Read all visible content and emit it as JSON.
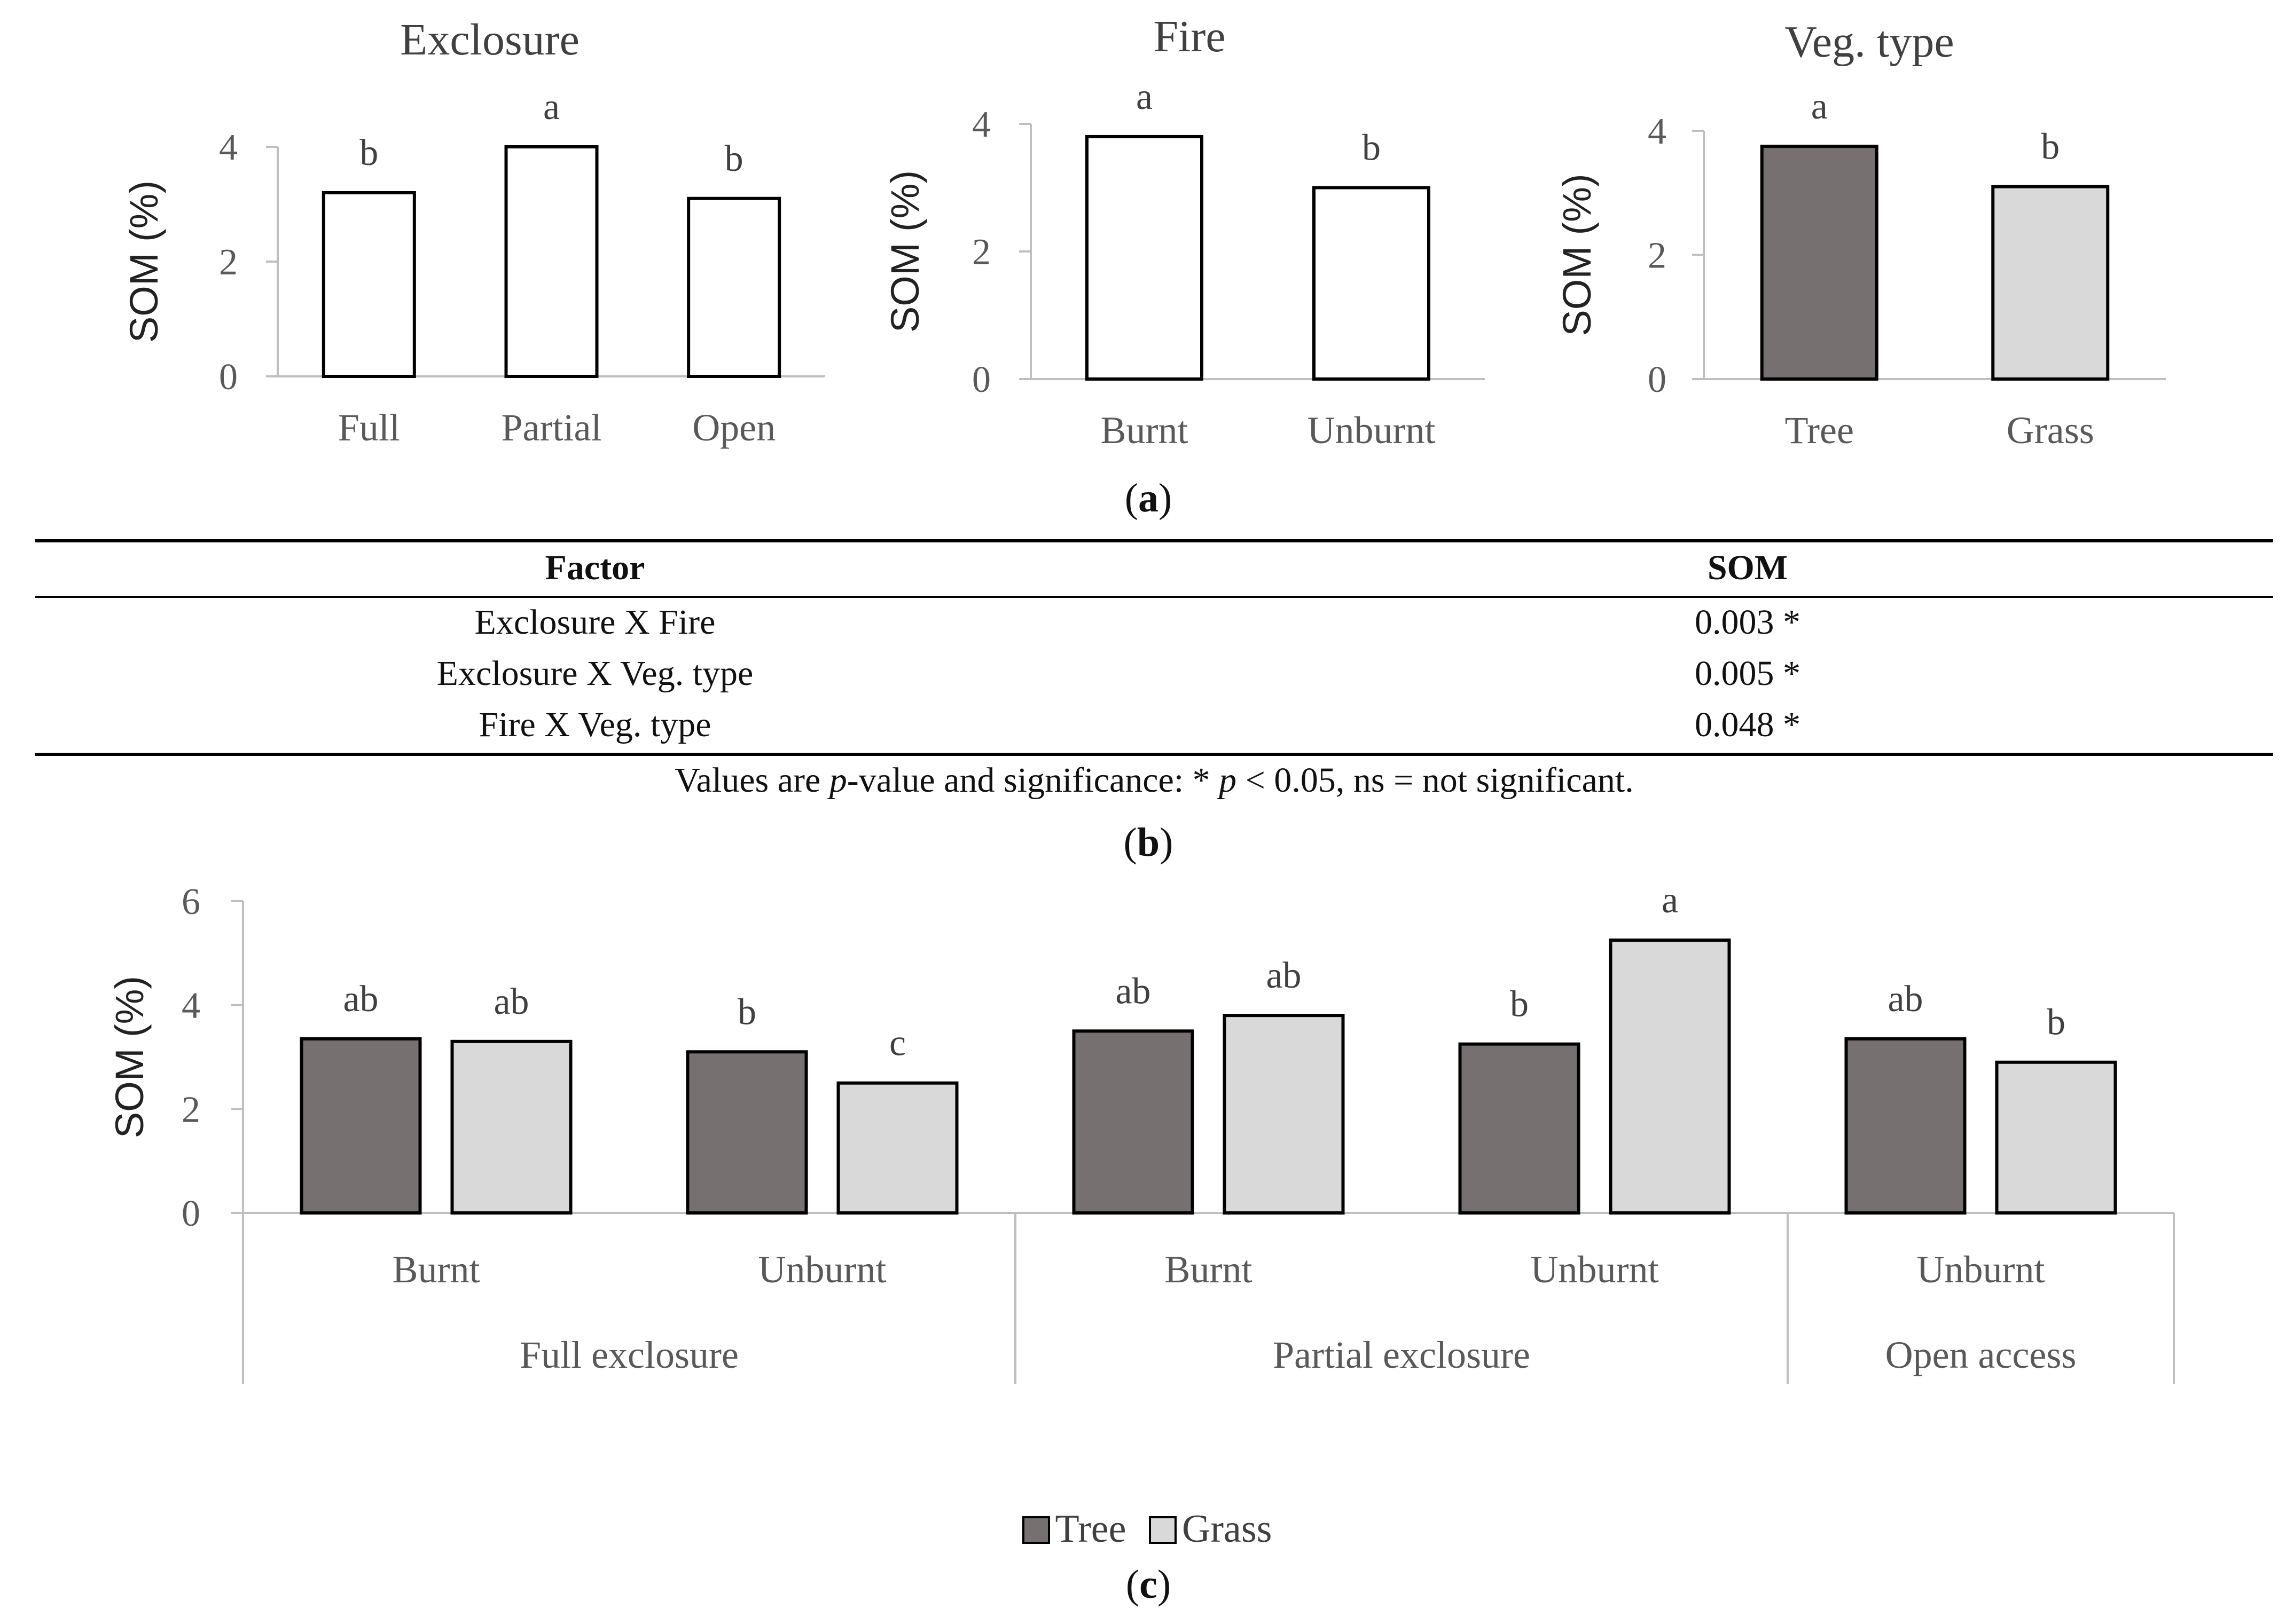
{
  "colors": {
    "tree": "#767070",
    "grass": "#d9d9d9",
    "open": "#ffffff",
    "axis": "#bfbfbf",
    "text": "#595959"
  },
  "panel_a": {
    "label": "a",
    "charts": [
      {
        "title": "Exclosure",
        "ylabel": "SOM (%)",
        "ylim": [
          0,
          4
        ],
        "yticks": [
          "0",
          "2",
          "4"
        ],
        "categories": [
          "Full",
          "Partial",
          "Open"
        ],
        "values": [
          3.2,
          4.0,
          3.1
        ],
        "letters": [
          "b",
          "a",
          "b"
        ]
      },
      {
        "title": "Fire",
        "ylabel": "SOM (%)",
        "ylim": [
          0,
          4
        ],
        "yticks": [
          "0",
          "2",
          "4"
        ],
        "categories": [
          "Burnt",
          "Unburnt"
        ],
        "values": [
          3.8,
          3.0
        ],
        "letters": [
          "a",
          "b"
        ]
      },
      {
        "title": "Veg. type",
        "ylabel": "SOM (%)",
        "ylim": [
          0,
          4
        ],
        "yticks": [
          "0",
          "2",
          "4"
        ],
        "categories": [
          "Tree",
          "Grass"
        ],
        "values": [
          3.75,
          3.1
        ],
        "letters": [
          "a",
          "b"
        ]
      }
    ]
  },
  "panel_b": {
    "label": "b",
    "header": {
      "factor": "Factor",
      "som": "SOM"
    },
    "rows": [
      {
        "factor": "Exclosure X Fire",
        "som": "0.003 *"
      },
      {
        "factor": "Exclosure X Veg. type",
        "som": "0.005 *"
      },
      {
        "factor": "Fire X Veg. type",
        "som": "0.048 *"
      }
    ],
    "note_before": "Values are ",
    "note_p1": "p",
    "note_mid": "-value and significance: * ",
    "note_p2": "p",
    "note_after": " < 0.05, ns = not significant."
  },
  "chart_data": {
    "type": "bar",
    "title": "",
    "ylabel": "SOM (%)",
    "ylim": [
      0,
      6
    ],
    "yticks": [
      "0",
      "2",
      "4",
      "6"
    ],
    "groups": [
      {
        "name": "Full exclosure",
        "subcategories": [
          "Burnt",
          "Unburnt"
        ]
      },
      {
        "name": "Partial exclosure",
        "subcategories": [
          "Burnt",
          "Unburnt"
        ]
      },
      {
        "name": "Open access",
        "subcategories": [
          "Unburnt"
        ]
      }
    ],
    "categories": [
      "Full exclosure - Burnt",
      "Full exclosure - Unburnt",
      "Partial exclosure - Burnt",
      "Partial exclosure - Unburnt",
      "Open access - Unburnt"
    ],
    "series": [
      {
        "name": "Tree",
        "values": [
          3.35,
          3.1,
          3.5,
          3.25,
          3.35
        ],
        "letters": [
          "ab",
          "b",
          "ab",
          "b",
          "ab"
        ]
      },
      {
        "name": "Grass",
        "values": [
          3.3,
          2.5,
          3.8,
          5.25,
          2.9
        ],
        "letters": [
          "ab",
          "c",
          "ab",
          "a",
          "b"
        ]
      }
    ],
    "legend": [
      "Tree",
      "Grass"
    ],
    "legend_position": "bottom"
  },
  "panel_c": {
    "label": "c"
  }
}
